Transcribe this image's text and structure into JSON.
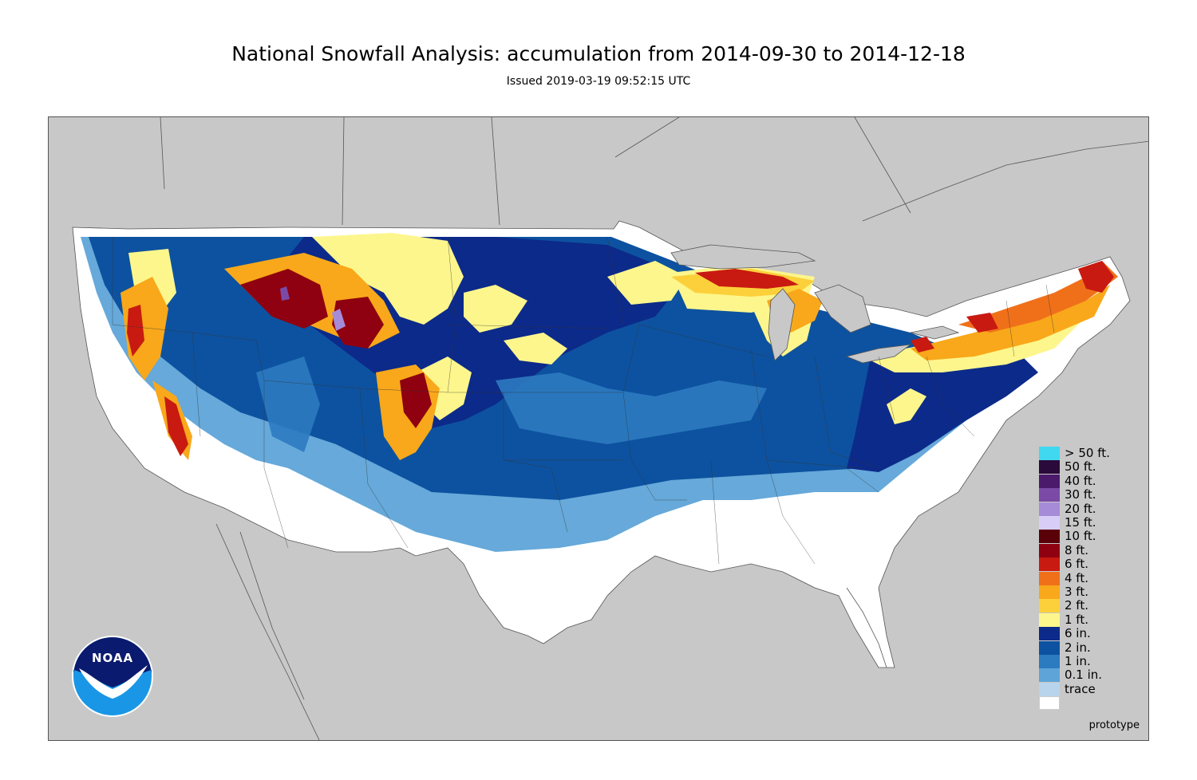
{
  "title": "National Snowfall Analysis: accumulation from 2014-09-30 to 2014-12-18",
  "subtitle": "Issued 2019-03-19 09:52:15 UTC",
  "watermark": "prototype",
  "logo": {
    "text": "NOAA"
  },
  "colors": {
    "background": "#c8c8c8",
    "land_outline": "#555555",
    "noaa_dark": "#0a1a6e",
    "noaa_light": "#1a96e6"
  },
  "legend": [
    {
      "label": "> 50 ft.",
      "color": "#3fd8f0"
    },
    {
      "label": "50 ft.",
      "color": "#2a0a3a"
    },
    {
      "label": "40 ft.",
      "color": "#4b1a6b"
    },
    {
      "label": "30 ft.",
      "color": "#7b4aa6"
    },
    {
      "label": "20 ft.",
      "color": "#a58bd8"
    },
    {
      "label": "15 ft.",
      "color": "#d7cdf6"
    },
    {
      "label": "10 ft.",
      "color": "#5a0008"
    },
    {
      "label": "8 ft.",
      "color": "#8f0010"
    },
    {
      "label": "6 ft.",
      "color": "#c81a10"
    },
    {
      "label": "4 ft.",
      "color": "#f0701a"
    },
    {
      "label": "3 ft.",
      "color": "#f8a81a"
    },
    {
      "label": "2 ft.",
      "color": "#fcd03a"
    },
    {
      "label": "1 ft.",
      "color": "#fdf68c"
    },
    {
      "label": "6 in.",
      "color": "#0c2a8a"
    },
    {
      "label": "2 in.",
      "color": "#0d52a0"
    },
    {
      "label": "1 in.",
      "color": "#2c7ac0"
    },
    {
      "label": "0.1 in.",
      "color": "#5ea4d8"
    },
    {
      "label": "trace",
      "color": "#b8d4ec"
    }
  ],
  "legend_bottom": {
    "label": "",
    "color": "#ffffff"
  }
}
